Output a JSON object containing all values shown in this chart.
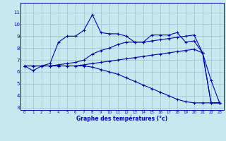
{
  "xlabel": "Graphe des températures (°c)",
  "bg_color": "#c8e8f0",
  "grid_color": "#a0c8d8",
  "line_color": "#0000bb",
  "x_ticks": [
    0,
    1,
    2,
    3,
    4,
    5,
    6,
    7,
    8,
    9,
    10,
    11,
    12,
    13,
    14,
    15,
    16,
    17,
    18,
    19,
    20,
    21,
    22,
    23
  ],
  "y_ticks": [
    3,
    4,
    5,
    6,
    7,
    8,
    9,
    10,
    11
  ],
  "ylim": [
    2.8,
    11.8
  ],
  "xlim": [
    -0.5,
    23.5
  ],
  "series": [
    [
      6.5,
      6.1,
      6.5,
      6.7,
      8.5,
      9.0,
      9.0,
      9.5,
      10.8,
      9.3,
      9.2,
      9.2,
      9.0,
      8.5,
      8.5,
      9.1,
      9.1,
      9.1,
      9.3,
      8.5,
      8.6,
      7.6,
      5.3,
      3.4
    ],
    [
      6.5,
      6.5,
      6.5,
      6.5,
      6.6,
      6.7,
      6.8,
      7.0,
      7.5,
      7.8,
      8.0,
      8.3,
      8.5,
      8.5,
      8.5,
      8.6,
      8.7,
      8.8,
      8.9,
      9.0,
      9.1,
      7.6,
      3.4,
      3.4
    ],
    [
      6.5,
      6.5,
      6.5,
      6.5,
      6.5,
      6.5,
      6.5,
      6.6,
      6.7,
      6.8,
      6.9,
      7.0,
      7.1,
      7.2,
      7.3,
      7.4,
      7.5,
      7.6,
      7.7,
      7.8,
      7.9,
      7.6,
      3.4,
      3.4
    ],
    [
      6.5,
      6.5,
      6.5,
      6.5,
      6.5,
      6.5,
      6.5,
      6.5,
      6.4,
      6.2,
      6.0,
      5.8,
      5.5,
      5.2,
      4.9,
      4.6,
      4.3,
      4.0,
      3.7,
      3.5,
      3.4,
      3.4,
      3.4,
      3.4
    ]
  ]
}
